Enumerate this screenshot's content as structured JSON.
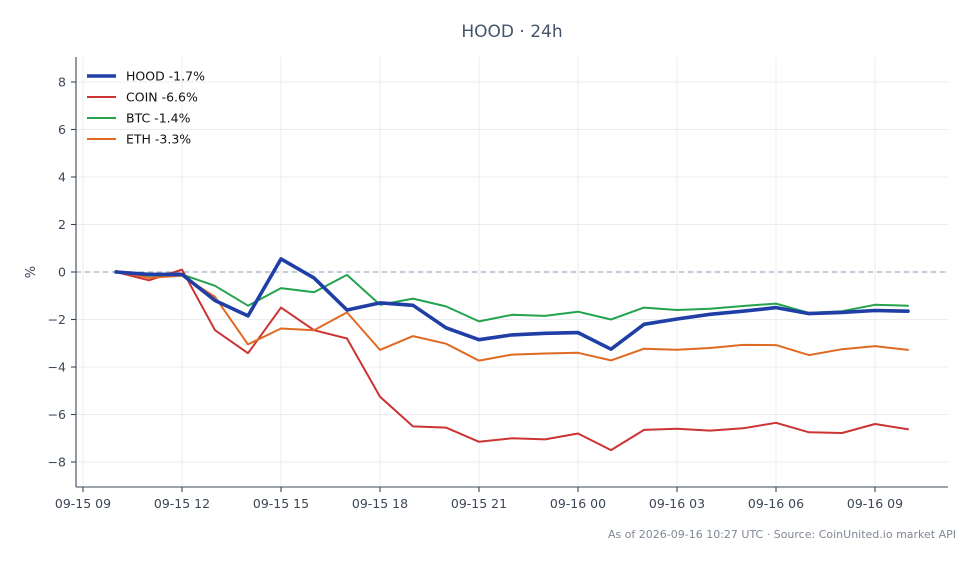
{
  "chart_data": {
    "type": "line",
    "title": "HOOD · 24h",
    "xlabel": "",
    "ylabel": "%",
    "x_ticks": [
      "09-15 09",
      "09-15 12",
      "09-15 15",
      "09-15 18",
      "09-15 21",
      "09-16 00",
      "09-16 03",
      "09-16 06",
      "09-16 09"
    ],
    "xlim_hours": [
      0,
      26.5
    ],
    "ylim": [
      -9,
      9
    ],
    "y_ticks": [
      8,
      6,
      4,
      2,
      0,
      -2,
      -4,
      -6,
      -8
    ],
    "y_tick_labels": [
      "8",
      "6",
      "4",
      "2",
      "0",
      "−2",
      "−4",
      "−6",
      "−8"
    ],
    "grid": true,
    "baseline": 0,
    "legend_position": "top-left",
    "x_hours": [
      1,
      2,
      3,
      4,
      5,
      6,
      7,
      8,
      9,
      10,
      11,
      12,
      13,
      14,
      15,
      16,
      17,
      18,
      19,
      20,
      21,
      22,
      23,
      24,
      25
    ],
    "series": [
      {
        "name": "HOOD -1.7%",
        "color": "#1f3fa6",
        "width": 3.6,
        "values": [
          0.0,
          -0.1,
          -0.1,
          -1.2,
          -1.85,
          0.55,
          -0.25,
          -1.6,
          -1.3,
          -1.4,
          -2.35,
          -2.85,
          -2.65,
          -2.58,
          -2.55,
          -3.25,
          -2.2,
          -1.98,
          -1.78,
          -1.65,
          -1.5,
          -1.75,
          -1.7,
          -1.62,
          -1.65
        ]
      },
      {
        "name": "COIN -6.6%",
        "color": "#cc3333",
        "width": 2,
        "values": [
          0.0,
          -0.35,
          0.1,
          -2.45,
          -3.42,
          -1.5,
          -2.45,
          -2.8,
          -5.25,
          -6.5,
          -6.55,
          -7.15,
          -7.0,
          -7.05,
          -6.8,
          -7.5,
          -6.65,
          -6.6,
          -6.68,
          -6.58,
          -6.35,
          -6.75,
          -6.78,
          -6.4,
          -6.62
        ]
      },
      {
        "name": "BTC -1.4%",
        "color": "#22a34c",
        "width": 2,
        "values": [
          0.02,
          -0.15,
          -0.1,
          -0.58,
          -1.42,
          -0.68,
          -0.85,
          -0.12,
          -1.38,
          -1.12,
          -1.45,
          -2.08,
          -1.8,
          -1.85,
          -1.67,
          -2.0,
          -1.5,
          -1.6,
          -1.55,
          -1.43,
          -1.33,
          -1.72,
          -1.65,
          -1.38,
          -1.42
        ]
      },
      {
        "name": "ETH -3.3%",
        "color": "#e06a22",
        "width": 2,
        "values": [
          0.05,
          -0.25,
          -0.15,
          -1.05,
          -3.05,
          -2.38,
          -2.45,
          -1.7,
          -3.28,
          -2.7,
          -3.02,
          -3.73,
          -3.48,
          -3.43,
          -3.4,
          -3.72,
          -3.23,
          -3.27,
          -3.2,
          -3.07,
          -3.08,
          -3.5,
          -3.25,
          -3.12,
          -3.28
        ]
      }
    ]
  },
  "footer": "As of 2026-09-16 10:27 UTC · Source: CoinUnited.io market API"
}
